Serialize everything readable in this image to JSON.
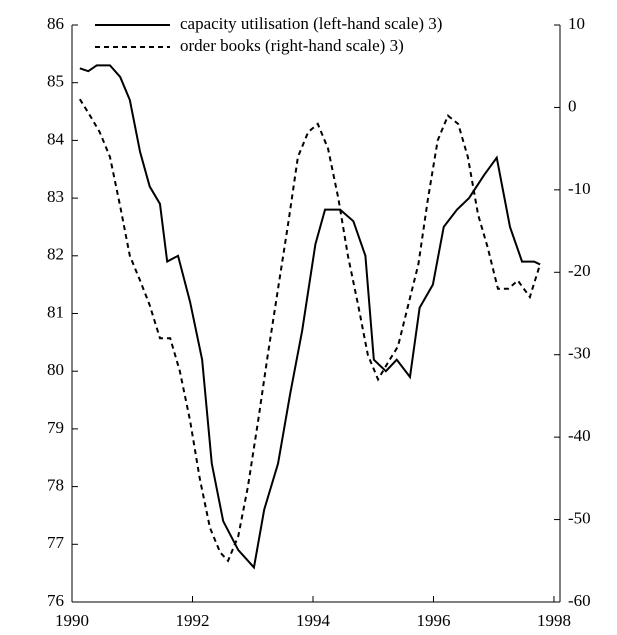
{
  "chart_data": {
    "type": "line",
    "x_capacity": [
      1990.13,
      1990.27,
      1990.41,
      1990.63,
      1990.8,
      1990.96,
      1991.13,
      1991.29,
      1991.46,
      1991.58,
      1991.76,
      1991.96,
      1992.16,
      1992.32,
      1992.51,
      1992.76,
      1993.02,
      1993.19,
      1993.42,
      1993.62,
      1993.82,
      1994.04,
      1994.2,
      1994.45,
      1994.67,
      1994.87,
      1995.01,
      1995.21,
      1995.39,
      1995.61,
      1995.77,
      1995.99,
      1996.17,
      1996.39,
      1996.59,
      1996.84,
      1997.05,
      1997.27,
      1997.47,
      1997.67,
      1997.77
    ],
    "x_orders": [
      1990.13,
      1990.3,
      1990.46,
      1990.63,
      1990.8,
      1990.96,
      1991.13,
      1991.29,
      1991.46,
      1991.63,
      1991.79,
      1991.96,
      1992.12,
      1992.29,
      1992.46,
      1992.59,
      1992.76,
      1992.92,
      1993.09,
      1993.25,
      1993.42,
      1993.59,
      1993.75,
      1993.92,
      1994.08,
      1994.25,
      1994.42,
      1994.58,
      1994.75,
      1994.91,
      1995.08,
      1995.24,
      1995.41,
      1995.58,
      1995.75,
      1995.91,
      1996.07,
      1996.24,
      1996.41,
      1996.57,
      1996.74,
      1996.9,
      1997.07,
      1997.24,
      1997.4,
      1997.6,
      1997.77
    ],
    "series": [
      {
        "name": "capacity utilisation (left-hand scale) 3)",
        "color": "#000000",
        "dash": false,
        "axis": "y",
        "x": "x_capacity",
        "values": [
          85.25,
          85.2,
          85.3,
          85.3,
          85.1,
          84.7,
          83.8,
          83.2,
          82.9,
          81.9,
          82.0,
          81.2,
          80.2,
          78.4,
          77.4,
          76.9,
          76.6,
          77.6,
          78.4,
          79.6,
          80.7,
          82.2,
          82.8,
          82.8,
          82.6,
          82.0,
          80.2,
          80.0,
          80.2,
          79.9,
          81.1,
          81.5,
          82.5,
          82.8,
          83.0,
          83.4,
          83.7,
          82.5,
          81.9,
          81.9,
          81.85
        ]
      },
      {
        "name": "order books (right-hand scale) 3)",
        "color": "#000000",
        "dash": true,
        "axis": "y2",
        "x": "x_orders",
        "values": [
          1,
          -1,
          -3,
          -6,
          -12,
          -18,
          -21,
          -24,
          -28,
          -28,
          -32,
          -38,
          -45,
          -51,
          -54,
          -55,
          -52,
          -46,
          -38,
          -30,
          -22,
          -14,
          -6,
          -3,
          -2,
          -5,
          -11,
          -18,
          -24,
          -30,
          -33,
          -31,
          -29,
          -24,
          -19,
          -11,
          -4,
          -1,
          -2,
          -6,
          -13,
          -17,
          -22,
          -22,
          -21,
          -23,
          -19
        ]
      }
    ],
    "xlim": [
      1990,
      1998.1
    ],
    "xticks": [
      1990,
      1992,
      1994,
      1996,
      1998
    ],
    "ylim": [
      76,
      86
    ],
    "yticks": [
      76,
      77,
      78,
      79,
      80,
      81,
      82,
      83,
      84,
      85,
      86
    ],
    "y2lim": [
      -60,
      10
    ],
    "y2ticks": [
      -60,
      -50,
      -40,
      -30,
      -20,
      -10,
      0,
      10
    ]
  }
}
